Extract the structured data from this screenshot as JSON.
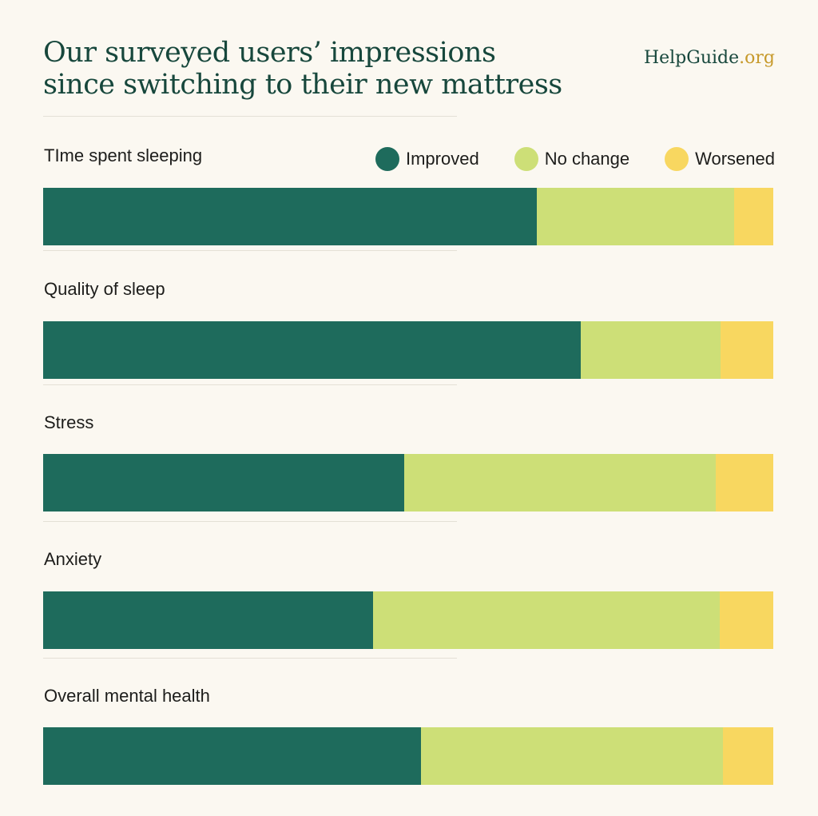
{
  "header": {
    "title_line1": "Our surveyed users’ impressions",
    "title_line2": "since switching to their new mattress",
    "brand_main": "HelpGuide",
    "brand_tld": ".org"
  },
  "colors": {
    "improved": "#1e6b5c",
    "no_change": "#cddf77",
    "worsened": "#f8d760",
    "title": "#17473c",
    "brand_accent": "#c79a2c"
  },
  "chart_data": {
    "type": "bar",
    "orientation": "horizontal",
    "stacked": true,
    "normalized_to": 100,
    "categories": [
      "TIme spent sleeping",
      "Quality of sleep",
      "Stress",
      "Anxiety",
      "Overall mental health"
    ],
    "series": [
      {
        "name": "Improved",
        "values": [
          67.6,
          73.6,
          49.5,
          45.2,
          51.7
        ]
      },
      {
        "name": "No change",
        "values": [
          27.0,
          19.2,
          42.7,
          47.5,
          41.4
        ]
      },
      {
        "name": "Worsened",
        "values": [
          5.4,
          7.2,
          7.8,
          7.3,
          6.9
        ]
      }
    ],
    "legend_position": "top-right",
    "grid": false
  }
}
